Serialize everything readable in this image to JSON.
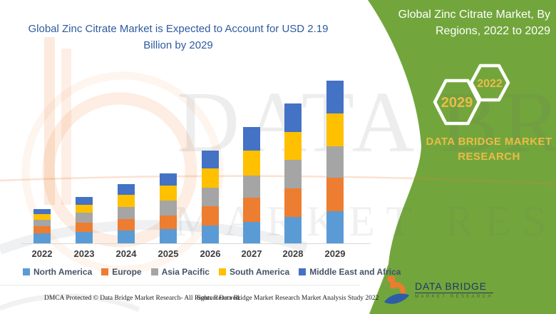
{
  "title": {
    "line1": "Global Zinc Citrate Market is Expected to Account for USD 2.19",
    "line2": "Billion by 2029"
  },
  "panel": {
    "title_line1": "Global Zinc Citrate Market, By",
    "title_line2": "Regions, 2022 to 2029",
    "background_color": "#72a63c",
    "hex_badge_large": "2029",
    "hex_badge_small": "2022",
    "brand_line1": "DATA BRIDGE MARKET",
    "brand_line2": "RESEARCH",
    "brand_text_color": "#eabc47"
  },
  "logo": {
    "title": "DATA BRIDGE",
    "subtitle": "MARKET RESEARCH"
  },
  "footer": {
    "dmca": "DMCA Protected © Data Bridge Market Research- All Rights Reserved.",
    "source": "Source: Data Bridge Market Research Market Analysis Study 2022"
  },
  "watermark": {
    "row1": "DATA BRIDGE",
    "row2": "MARKET RESEARCH"
  },
  "colors": {
    "title_blue": "#2e5b9e",
    "panel_green": "#72a63c",
    "accent_gold": "#eabc47",
    "logo_navy": "#203864",
    "logo_orange": "#ee7c2e",
    "logo_blue": "#2e5da7"
  },
  "chart_data": {
    "type": "bar",
    "stacked": true,
    "title": "Global Zinc Citrate Market, By Regions, 2022 to 2029",
    "unit": "USD Billion",
    "categories": [
      "2022",
      "2023",
      "2024",
      "2025",
      "2026",
      "2027",
      "2028",
      "2029"
    ],
    "series": [
      {
        "name": "North America",
        "color": "#5B9BD5",
        "values": [
          0.13,
          0.15,
          0.17,
          0.19,
          0.24,
          0.29,
          0.36,
          0.43
        ]
      },
      {
        "name": "Europe",
        "color": "#ED7D31",
        "values": [
          0.1,
          0.13,
          0.16,
          0.18,
          0.26,
          0.32,
          0.38,
          0.45
        ]
      },
      {
        "name": "Asia Pacific",
        "color": "#A5A5A5",
        "values": [
          0.09,
          0.13,
          0.16,
          0.21,
          0.25,
          0.3,
          0.38,
          0.43
        ]
      },
      {
        "name": "South America",
        "color": "#FFC000",
        "values": [
          0.07,
          0.11,
          0.16,
          0.2,
          0.26,
          0.34,
          0.38,
          0.44
        ]
      },
      {
        "name": "Middle East and Africa",
        "color": "#4472C4",
        "values": [
          0.07,
          0.1,
          0.15,
          0.16,
          0.24,
          0.31,
          0.38,
          0.44
        ]
      }
    ],
    "totals": [
      0.46,
      0.62,
      0.8,
      0.94,
      1.25,
      1.56,
      1.88,
      2.19
    ],
    "ylim": [
      0,
      2.3
    ],
    "axis_labels_hidden": true,
    "gridlines": false,
    "legend_position": "bottom"
  }
}
